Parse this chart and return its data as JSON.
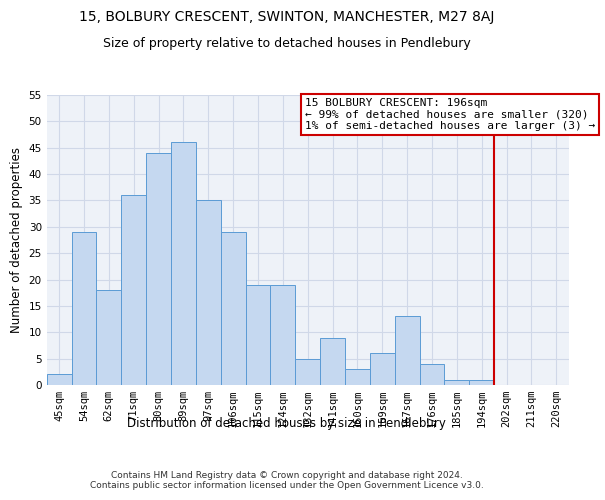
{
  "title": "15, BOLBURY CRESCENT, SWINTON, MANCHESTER, M27 8AJ",
  "subtitle": "Size of property relative to detached houses in Pendlebury",
  "xlabel": "Distribution of detached houses by size in Pendlebury",
  "ylabel": "Number of detached properties",
  "footer_line1": "Contains HM Land Registry data © Crown copyright and database right 2024.",
  "footer_line2": "Contains public sector information licensed under the Open Government Licence v3.0.",
  "categories": [
    "45sqm",
    "54sqm",
    "62sqm",
    "71sqm",
    "80sqm",
    "89sqm",
    "97sqm",
    "106sqm",
    "115sqm",
    "124sqm",
    "132sqm",
    "141sqm",
    "150sqm",
    "159sqm",
    "167sqm",
    "176sqm",
    "185sqm",
    "194sqm",
    "202sqm",
    "211sqm",
    "220sqm"
  ],
  "values": [
    2,
    29,
    18,
    36,
    44,
    46,
    35,
    29,
    19,
    19,
    5,
    9,
    3,
    6,
    13,
    4,
    1,
    1,
    0,
    0,
    0
  ],
  "bar_color": "#c5d8f0",
  "bar_edge_color": "#5b9bd5",
  "grid_color": "#d0d8e8",
  "background_color": "#eef2f8",
  "annotation_box_color": "#cc0000",
  "vline_color": "#cc0000",
  "vline_x_idx": 17.5,
  "annotation_title": "15 BOLBURY CRESCENT: 196sqm",
  "annotation_line1": "← 99% of detached houses are smaller (320)",
  "annotation_line2": "1% of semi-detached houses are larger (3) →",
  "ylim": [
    0,
    55
  ],
  "yticks": [
    0,
    5,
    10,
    15,
    20,
    25,
    30,
    35,
    40,
    45,
    50,
    55
  ],
  "title_fontsize": 10,
  "subtitle_fontsize": 9,
  "axis_label_fontsize": 8.5,
  "tick_fontsize": 7.5,
  "annotation_fontsize": 8,
  "footer_fontsize": 6.5
}
